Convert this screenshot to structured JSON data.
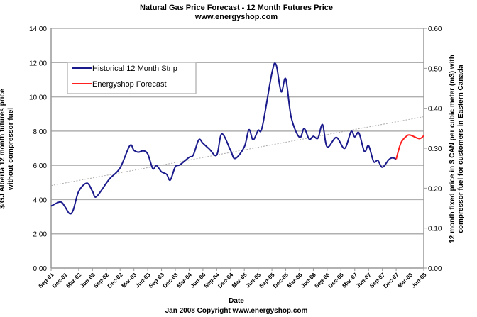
{
  "chart_data": {
    "type": "line",
    "title": "Natural Gas Price Forecast - 12 Month Futures Price",
    "subtitle": "www.energyshop.com",
    "xlabel": "Date",
    "footer": "Jan 2008 Copyright www.energyshop.com",
    "ylabel": "$/GJ Alberta 12 month futures price without compressor fuel",
    "ylabel_right": "12 month fixed price in $ CAN per cubic meter (m3) with compressor fuel for customers in Eastern Canada",
    "ylim": [
      0,
      14
    ],
    "yticks": [
      "0.00",
      "2.00",
      "4.00",
      "6.00",
      "8.00",
      "10.00",
      "12.00",
      "14.00"
    ],
    "ylim_right": [
      0,
      0.6
    ],
    "yticks_right": [
      "0.00",
      "0.10",
      "0.20",
      "0.30",
      "0.40",
      "0.50",
      "0.60"
    ],
    "x_unit": "months since Sep-01",
    "xlim": [
      0,
      81
    ],
    "xticks": [
      "Sep-01",
      "Dec-01",
      "Mar-02",
      "Jun-02",
      "Sep-02",
      "Dec-02",
      "Mar-03",
      "Jun-03",
      "Sep-03",
      "Dec-03",
      "Mar-04",
      "Jun-04",
      "Sep-04",
      "Dec-04",
      "Mar-05",
      "Jun-05",
      "Sep-05",
      "Dec-05",
      "Mar-06",
      "Jun-06",
      "Sep-06",
      "Dec-06",
      "Mar-07",
      "Jun-07",
      "Sep-07",
      "Dec-07",
      "Mar-08",
      "Jun-08"
    ],
    "grid": true,
    "legend_position": "top-left",
    "series": [
      {
        "name": "Historical 12 Month Strip",
        "color": "#1a1a8c",
        "points": [
          [
            0,
            3.62
          ],
          [
            2,
            3.86
          ],
          [
            3,
            3.59
          ],
          [
            4,
            3.18
          ],
          [
            4.8,
            3.38
          ],
          [
            6,
            4.48
          ],
          [
            7.8,
            4.96
          ],
          [
            9,
            4.48
          ],
          [
            9.8,
            4.16
          ],
          [
            12,
            4.96
          ],
          [
            12.9,
            5.27
          ],
          [
            15,
            5.85
          ],
          [
            17.1,
            7.15
          ],
          [
            18,
            6.88
          ],
          [
            19,
            6.77
          ],
          [
            20,
            6.85
          ],
          [
            21,
            6.67
          ],
          [
            22.1,
            5.81
          ],
          [
            22.9,
            5.99
          ],
          [
            24,
            5.62
          ],
          [
            25.1,
            5.48
          ],
          [
            25.9,
            5.14
          ],
          [
            27,
            5.92
          ],
          [
            28,
            6.03
          ],
          [
            30,
            6.47
          ],
          [
            30.9,
            6.6
          ],
          [
            32.1,
            7.49
          ],
          [
            33,
            7.29
          ],
          [
            34.4,
            6.95
          ],
          [
            36,
            6.6
          ],
          [
            37.1,
            7.84
          ],
          [
            39,
            6.88
          ],
          [
            40,
            6.4
          ],
          [
            42,
            7.08
          ],
          [
            43,
            8.08
          ],
          [
            43.9,
            7.49
          ],
          [
            45,
            8.04
          ],
          [
            45.9,
            8.25
          ],
          [
            48,
            11.4
          ],
          [
            48.9,
            11.88
          ],
          [
            50,
            10.3
          ],
          [
            51,
            11.05
          ],
          [
            52.2,
            8.79
          ],
          [
            54,
            7.63
          ],
          [
            55,
            8.15
          ],
          [
            56.1,
            7.53
          ],
          [
            57,
            7.7
          ],
          [
            58,
            7.59
          ],
          [
            59,
            8.38
          ],
          [
            60,
            7.08
          ],
          [
            62,
            7.63
          ],
          [
            63.8,
            6.99
          ],
          [
            65.2,
            7.97
          ],
          [
            66,
            7.66
          ],
          [
            66.9,
            7.9
          ],
          [
            68.1,
            6.81
          ],
          [
            69,
            7.15
          ],
          [
            70.1,
            6.22
          ],
          [
            71,
            6.29
          ],
          [
            72,
            5.89
          ],
          [
            73.4,
            6.33
          ],
          [
            74.2,
            6.44
          ],
          [
            75,
            6.36
          ]
        ]
      },
      {
        "name": "Energyshop Forecast",
        "color": "#ff2020",
        "points": [
          [
            75,
            6.36
          ],
          [
            76,
            7.29
          ],
          [
            77.1,
            7.67
          ],
          [
            78,
            7.77
          ],
          [
            80,
            7.56
          ],
          [
            81,
            7.73
          ]
        ]
      }
    ],
    "trendline": {
      "style": "dotted",
      "color": "#aaaaaa",
      "points": [
        [
          0,
          4.82
        ],
        [
          81,
          8.84
        ]
      ]
    }
  }
}
